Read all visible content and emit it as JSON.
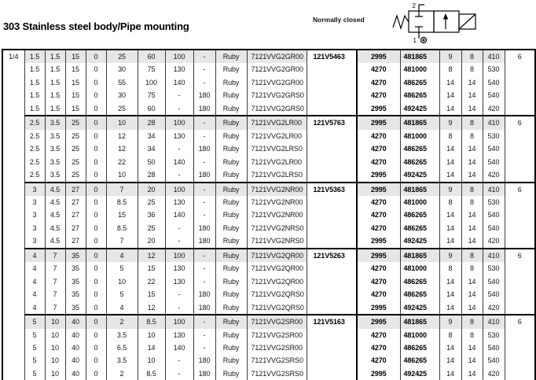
{
  "header": {
    "title": "303 Stainless steel body/Pipe mounting",
    "condition_label": "Normally closed",
    "valve_port_top": "2",
    "valve_port_bottom": "1"
  },
  "table": {
    "pipe_size": "1/4",
    "rows": [
      [
        "1.5",
        "1.5",
        "15",
        "0",
        "25",
        "60",
        "100",
        "-",
        "Ruby",
        "7121VVG2GR00",
        "121V5463",
        "2995",
        "481865",
        "9",
        "8",
        "410",
        "6"
      ],
      [
        "1.5",
        "1.5",
        "15",
        "0",
        "30",
        "75",
        "130",
        "-",
        "Ruby",
        "7121VVG2GR00",
        "",
        "4270",
        "481000",
        "8",
        "8",
        "530",
        ""
      ],
      [
        "1.5",
        "1.5",
        "15",
        "0",
        "55",
        "100",
        "140",
        "-",
        "Ruby",
        "7121VVG2GR00",
        "",
        "4270",
        "486265",
        "14",
        "14",
        "540",
        ""
      ],
      [
        "1.5",
        "1.5",
        "15",
        "0",
        "30",
        "75",
        "-",
        "180",
        "Ruby",
        "7121VVG2GRS0",
        "",
        "4270",
        "486265",
        "14",
        "14",
        "540",
        ""
      ],
      [
        "1.5",
        "1.5",
        "15",
        "0",
        "25",
        "60",
        "-",
        "180",
        "Ruby",
        "7121VVG2GRS0",
        "",
        "2995",
        "492425",
        "14",
        "14",
        "420",
        ""
      ],
      [
        "2.5",
        "3.5",
        "25",
        "0",
        "10",
        "28",
        "100",
        "-",
        "Ruby",
        "7121VVG2LR00",
        "121V5763",
        "2995",
        "481865",
        "9",
        "8",
        "410",
        "6"
      ],
      [
        "2.5",
        "3.5",
        "25",
        "0",
        "12",
        "34",
        "130",
        "-",
        "Ruby",
        "7121VVG2LR00",
        "",
        "4270",
        "481000",
        "8",
        "8",
        "530",
        ""
      ],
      [
        "2.5",
        "3.5",
        "25",
        "0",
        "12",
        "34",
        "-",
        "180",
        "Ruby",
        "7121VVG2LRS0",
        "",
        "4270",
        "486265",
        "14",
        "14",
        "540",
        ""
      ],
      [
        "2.5",
        "3.5",
        "25",
        "0",
        "22",
        "50",
        "140",
        "-",
        "Ruby",
        "7121VVG2LR00",
        "",
        "4270",
        "486265",
        "14",
        "14",
        "540",
        ""
      ],
      [
        "2.5",
        "3.5",
        "25",
        "0",
        "10",
        "28",
        "-",
        "180",
        "Ruby",
        "7121VVG2LRS0",
        "",
        "2995",
        "492425",
        "14",
        "14",
        "420",
        ""
      ],
      [
        "3",
        "4.5",
        "27",
        "0",
        "7",
        "20",
        "100",
        "-",
        "Ruby",
        "7121VVG2NR00",
        "121V5363",
        "2995",
        "481865",
        "9",
        "8",
        "410",
        "6"
      ],
      [
        "3",
        "4.5",
        "27",
        "0",
        "8.5",
        "25",
        "130",
        "-",
        "Ruby",
        "7121VVG2NR00",
        "",
        "4270",
        "481000",
        "8",
        "8",
        "530",
        ""
      ],
      [
        "3",
        "4.5",
        "27",
        "0",
        "15",
        "36",
        "140",
        "-",
        "Ruby",
        "7121VVG2NR00",
        "",
        "4270",
        "486265",
        "14",
        "14",
        "540",
        ""
      ],
      [
        "3",
        "4.5",
        "27",
        "0",
        "8.5",
        "25",
        "-",
        "180",
        "Ruby",
        "7121VVG2NRS0",
        "",
        "4270",
        "486265",
        "14",
        "14",
        "540",
        ""
      ],
      [
        "3",
        "4.5",
        "27",
        "0",
        "7",
        "20",
        "-",
        "180",
        "Ruby",
        "7121VVG2NRS0",
        "",
        "2995",
        "492425",
        "14",
        "14",
        "420",
        ""
      ],
      [
        "4",
        "7",
        "35",
        "0",
        "4",
        "12",
        "100",
        "-",
        "Ruby",
        "7121VVG2QR00",
        "121V5263",
        "2995",
        "481865",
        "9",
        "8",
        "410",
        "6"
      ],
      [
        "4",
        "7",
        "35",
        "0",
        "5",
        "15",
        "130",
        "-",
        "Ruby",
        "7121VVG2QR00",
        "",
        "4270",
        "481000",
        "8",
        "8",
        "530",
        ""
      ],
      [
        "4",
        "7",
        "35",
        "0",
        "10",
        "22",
        "130",
        "-",
        "Ruby",
        "7121VVG2QR00",
        "",
        "4270",
        "486265",
        "14",
        "14",
        "540",
        ""
      ],
      [
        "4",
        "7",
        "35",
        "0",
        "5",
        "15",
        "-",
        "180",
        "Ruby",
        "7121VVG2QRS0",
        "",
        "4270",
        "486265",
        "14",
        "14",
        "540",
        ""
      ],
      [
        "4",
        "7",
        "35",
        "0",
        "4",
        "12",
        "-",
        "180",
        "Ruby",
        "7121VVG2QRS0",
        "",
        "2995",
        "492425",
        "14",
        "14",
        "420",
        ""
      ],
      [
        "5",
        "10",
        "40",
        "0",
        "2",
        "8.5",
        "100",
        "-",
        "Ruby",
        "7121VVG2SR00",
        "121V5163",
        "2995",
        "481865",
        "9",
        "8",
        "410",
        "6"
      ],
      [
        "5",
        "10",
        "40",
        "0",
        "3.5",
        "10",
        "130",
        "-",
        "Ruby",
        "7121VVG2SR00",
        "",
        "4270",
        "481000",
        "8",
        "8",
        "530",
        ""
      ],
      [
        "5",
        "10",
        "40",
        "0",
        "6.5",
        "14",
        "140",
        "-",
        "Ruby",
        "7121VVG2SR00",
        "",
        "4270",
        "486265",
        "14",
        "14",
        "540",
        ""
      ],
      [
        "5",
        "10",
        "40",
        "0",
        "3.5",
        "10",
        "-",
        "180",
        "Ruby",
        "7121VVG2SRS0",
        "",
        "4270",
        "486265",
        "14",
        "14",
        "540",
        ""
      ],
      [
        "5",
        "10",
        "40",
        "0",
        "2",
        "8.5",
        "-",
        "180",
        "Ruby",
        "7121VVG2SRS0",
        "",
        "2995",
        "492425",
        "14",
        "14",
        "420",
        ""
      ]
    ]
  }
}
